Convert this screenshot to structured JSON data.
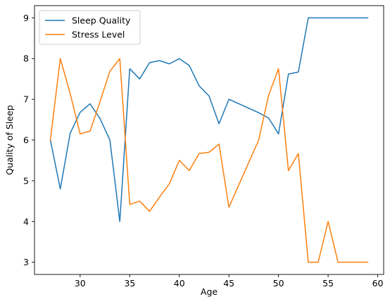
{
  "chart_data": {
    "type": "line",
    "title": "",
    "xlabel": "Age",
    "ylabel": "Quality of Sleep",
    "xlim": [
      25.4,
      60.6
    ],
    "ylim": [
      2.7,
      9.3
    ],
    "xticks": [
      30,
      35,
      40,
      45,
      50,
      55,
      60
    ],
    "yticks": [
      3,
      4,
      5,
      6,
      7,
      8,
      9
    ],
    "grid": false,
    "legend_position": "top-left",
    "series": [
      {
        "name": "Sleep Quality",
        "color": "#1f77b4",
        "x": [
          27,
          28,
          29,
          30,
          31,
          32,
          33,
          34,
          35,
          36,
          37,
          38,
          39,
          40,
          41,
          42,
          43,
          44,
          45,
          48,
          49,
          50,
          51,
          52,
          53,
          54,
          55,
          56,
          57,
          58,
          59
        ],
        "y": [
          6.0,
          4.8,
          6.17,
          6.68,
          6.89,
          6.53,
          6.0,
          4.0,
          7.75,
          7.5,
          7.9,
          7.95,
          7.87,
          8.0,
          7.83,
          7.33,
          7.08,
          6.4,
          7.0,
          6.67,
          6.54,
          6.15,
          7.62,
          7.67,
          9.0,
          9.0,
          9.0,
          9.0,
          9.0,
          9.0,
          9.0
        ]
      },
      {
        "name": "Stress Level",
        "color": "#ff7f0e",
        "x": [
          27,
          28,
          29,
          30,
          31,
          32,
          33,
          34,
          35,
          36,
          37,
          38,
          39,
          40,
          41,
          42,
          43,
          44,
          45,
          48,
          49,
          50,
          51,
          52,
          53,
          54,
          55,
          56,
          57,
          58,
          59
        ],
        "y": [
          6.0,
          8.0,
          7.14,
          6.15,
          6.22,
          6.94,
          7.69,
          8.0,
          4.42,
          4.5,
          4.25,
          4.6,
          4.93,
          5.5,
          5.25,
          5.67,
          5.7,
          5.9,
          4.35,
          6.0,
          7.1,
          7.75,
          5.25,
          5.67,
          3.0,
          3.0,
          4.0,
          3.0,
          3.0,
          3.0,
          3.0
        ]
      }
    ]
  }
}
